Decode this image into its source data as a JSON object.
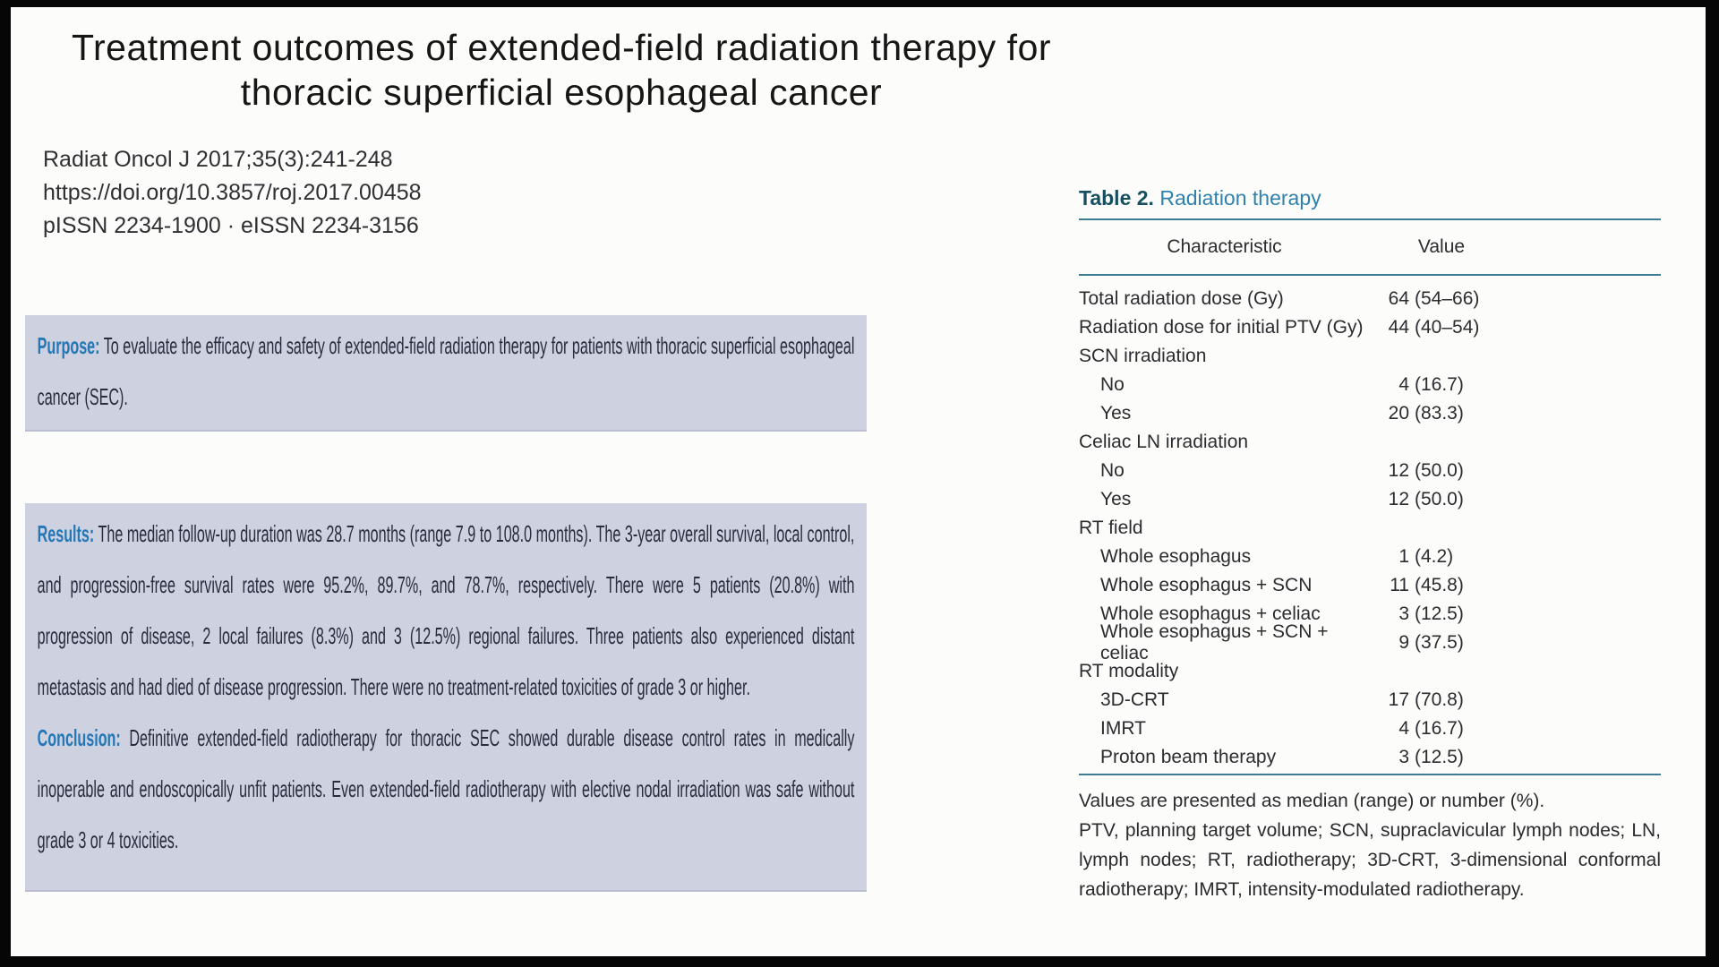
{
  "title": {
    "line1": "Treatment outcomes of extended-field radiation therapy for",
    "line2": "thoracic superficial esophageal cancer"
  },
  "citation": [
    "Radiat Oncol J 2017;35(3):241-248",
    "https://doi.org/10.3857/roj.2017.00458",
    "pISSN 2234-1900 · eISSN 2234-3156"
  ],
  "abstract": {
    "purpose_label": "Purpose:",
    "purpose_text": "To evaluate the efficacy and safety of extended-field radiation therapy for patients with thoracic superficial esophageal cancer (SEC).",
    "results_label": "Results:",
    "results_text": "The median follow-up duration was 28.7 months (range 7.9 to 108.0 months). The 3-year overall survival, local control, and progression-free survival rates were 95.2%, 89.7%, and 78.7%, respectively. There were 5 patients (20.8%) with progression of disease, 2 local failures (8.3%) and 3 (12.5%) regional failures. Three patients also experienced distant metastasis and had died of disease progression. There were no treatment-related toxicities of grade 3 or higher.",
    "conclusion_label": "Conclusion:",
    "conclusion_text": "Definitive extended-field radiotherapy for thoracic SEC showed durable disease control rates in medically inoperable and endoscopically unfit patients. Even extended-field radiotherapy with elective nodal irradiation was safe without grade 3 or 4 toxicities."
  },
  "table": {
    "label": "Table 2.",
    "title": "Radiation therapy",
    "col_headers": [
      "Characteristic",
      "Value"
    ],
    "rows": [
      {
        "label": "Total radiation dose (Gy)",
        "value": "64 (54–66)",
        "indent": 0
      },
      {
        "label": "Radiation dose for initial PTV (Gy)",
        "value": "44 (40–54)",
        "indent": 0
      },
      {
        "label": "SCN irradiation",
        "value": "",
        "indent": 0
      },
      {
        "label": "No",
        "value": "4 (16.7)",
        "indent": 1
      },
      {
        "label": "Yes",
        "value": "20 (83.3)",
        "indent": 1
      },
      {
        "label": "Celiac LN irradiation",
        "value": "",
        "indent": 0
      },
      {
        "label": "No",
        "value": "12 (50.0)",
        "indent": 1
      },
      {
        "label": "Yes",
        "value": "12 (50.0)",
        "indent": 1
      },
      {
        "label": "RT field",
        "value": "",
        "indent": 0
      },
      {
        "label": "Whole esophagus",
        "value": "1 (4.2)",
        "indent": 1
      },
      {
        "label": "Whole esophagus + SCN",
        "value": "11 (45.8)",
        "indent": 1
      },
      {
        "label": "Whole esophagus + celiac",
        "value": "3 (12.5)",
        "indent": 1
      },
      {
        "label": "Whole esophagus + SCN + celiac",
        "value": "9 (37.5)",
        "indent": 1
      },
      {
        "label": "RT modality",
        "value": "",
        "indent": 0
      },
      {
        "label": "3D-CRT",
        "value": "17 (70.8)",
        "indent": 1
      },
      {
        "label": "IMRT",
        "value": "4 (16.7)",
        "indent": 1
      },
      {
        "label": "Proton beam therapy",
        "value": "3 (12.5)",
        "indent": 1
      }
    ],
    "footnotes": [
      "Values are presented as median (range) or number (%).",
      "PTV, planning target volume; SCN, supraclavicular lymph nodes; LN, lymph nodes; RT, radiotherapy; 3D-CRT, 3-dimensional conformal radiotherapy; IMRT, intensity-modulated radiotherapy."
    ]
  },
  "colors": {
    "abstract_label_blue": "#2577b5",
    "highlight_box": "#cdd1e0",
    "table_label_navy": "#174f60",
    "table_title_blue": "#2e82ad",
    "table_rule_teal": "#3d7b94"
  }
}
